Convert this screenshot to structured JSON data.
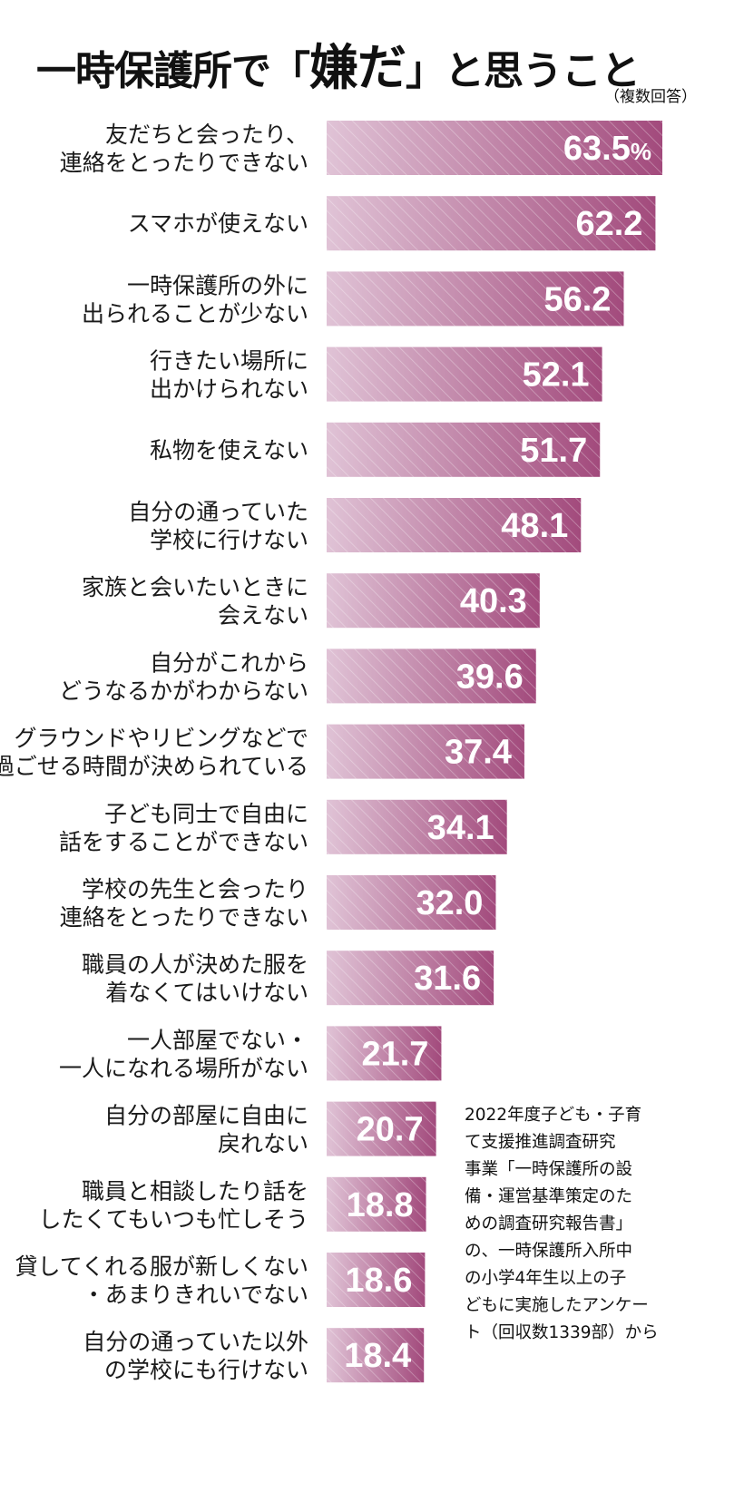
{
  "title": {
    "before": "一時保護所で「",
    "emphasis": "嫌だ",
    "after": "」と思うこと"
  },
  "subtitle": "（複数回答）",
  "colors": {
    "bar": "#a24a7c",
    "bar_light": "#e0c3d6",
    "hatch": "#ffffff",
    "value_text": "#ffffff"
  },
  "source_note": "2022年度子ども・子育\nて支援推進調査研究\n事業「一時保護所の設\n備・運営基準策定のた\nめの調査研究報告書」\nの、一時保護所入所中\nの小学4年生以上の子\nどもに実施したアンケー\nト（回収数1339部）から",
  "chart_data": {
    "type": "bar",
    "orientation": "horizontal",
    "unit": "%",
    "xlim": [
      0,
      63.5
    ],
    "grid": false,
    "legend": "none",
    "categories": [
      [
        "友だちと会ったり、",
        "連絡をとったりできない"
      ],
      [
        "スマホが使えない"
      ],
      [
        "一時保護所の外に",
        "出られることが少ない"
      ],
      [
        "行きたい場所に",
        "出かけられない"
      ],
      [
        "私物を使えない"
      ],
      [
        "自分の通っていた",
        "学校に行けない"
      ],
      [
        "家族と会いたいときに",
        "会えない"
      ],
      [
        "自分がこれから",
        "どうなるかがわからない"
      ],
      [
        "グラウンドやリビングなどで",
        "過ごせる時間が決められている"
      ],
      [
        "子ども同士で自由に",
        "話をすることができない"
      ],
      [
        "学校の先生と会ったり",
        "連絡をとったりできない"
      ],
      [
        "職員の人が決めた服を",
        "着なくてはいけない"
      ],
      [
        "一人部屋でない・",
        "一人になれる場所がない"
      ],
      [
        "自分の部屋に自由に",
        "戻れない"
      ],
      [
        "職員と相談したり話を",
        "したくてもいつも忙しそう"
      ],
      [
        "貸してくれる服が新しくない",
        "・あまりきれいでない"
      ],
      [
        "自分の通っていた以外",
        "の学校にも行けない"
      ]
    ],
    "values": [
      63.5,
      62.2,
      56.2,
      52.1,
      51.7,
      48.1,
      40.3,
      39.6,
      37.4,
      34.1,
      32.0,
      31.6,
      21.7,
      20.7,
      18.8,
      18.6,
      18.4
    ],
    "value_labels": [
      "63.5",
      "62.2",
      "56.2",
      "52.1",
      "51.7",
      "48.1",
      "40.3",
      "39.6",
      "37.4",
      "34.1",
      "32.0",
      "31.6",
      "21.7",
      "20.7",
      "18.8",
      "18.6",
      "18.4"
    ],
    "first_value_unit": "%"
  }
}
